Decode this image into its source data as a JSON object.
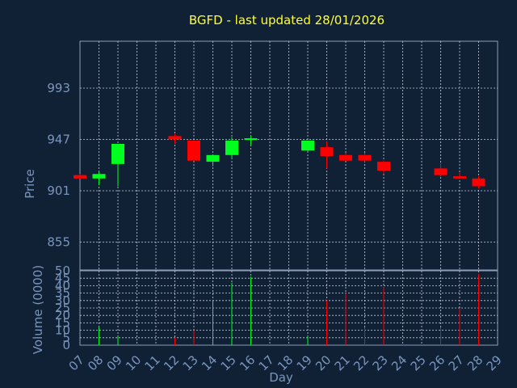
{
  "chart_data": {
    "type": "candlestick",
    "title": "BGFD - last updated 28/01/2026",
    "xlabel": "Day",
    "x_ticks": [
      "07",
      "08",
      "09",
      "10",
      "11",
      "12",
      "13",
      "14",
      "15",
      "16",
      "17",
      "18",
      "19",
      "20",
      "21",
      "22",
      "23",
      "24",
      "25",
      "26",
      "27",
      "28",
      "29"
    ],
    "price_panel": {
      "ylabel": "Price",
      "ylim": [
        830,
        1035
      ],
      "yticks": [
        855,
        901,
        947,
        993
      ],
      "candles": [
        {
          "day": "07",
          "open": 915,
          "high": 916,
          "low": 912,
          "close": 912
        },
        {
          "day": "08",
          "open": 912,
          "high": 918,
          "low": 906,
          "close": 916
        },
        {
          "day": "09",
          "open": 925,
          "high": 943,
          "low": 905,
          "close": 943
        },
        {
          "day": "12",
          "open": 950,
          "high": 952,
          "low": 943,
          "close": 947
        },
        {
          "day": "13",
          "open": 946,
          "high": 946,
          "low": 928,
          "close": 928
        },
        {
          "day": "14",
          "open": 927,
          "high": 933,
          "low": 923,
          "close": 933
        },
        {
          "day": "15",
          "open": 933,
          "high": 949,
          "low": 930,
          "close": 946
        },
        {
          "day": "16",
          "open": 947,
          "high": 951,
          "low": 942,
          "close": 948
        },
        {
          "day": "19",
          "open": 937,
          "high": 946,
          "low": 936,
          "close": 946
        },
        {
          "day": "20",
          "open": 940,
          "high": 945,
          "low": 921,
          "close": 932
        },
        {
          "day": "21",
          "open": 933,
          "high": 935,
          "low": 928,
          "close": 928
        },
        {
          "day": "22",
          "open": 933,
          "high": 935,
          "low": 927,
          "close": 928
        },
        {
          "day": "23",
          "open": 927,
          "high": 928,
          "low": 916,
          "close": 919
        },
        {
          "day": "26",
          "open": 921,
          "high": 926,
          "low": 914,
          "close": 915
        },
        {
          "day": "27",
          "open": 914,
          "high": 917,
          "low": 912,
          "close": 912
        },
        {
          "day": "28",
          "open": 912,
          "high": 914,
          "low": 903,
          "close": 905
        }
      ]
    },
    "volume_panel": {
      "ylabel": "Volume (0000)",
      "ylim": [
        0,
        50
      ],
      "yticks": [
        0,
        5,
        10,
        15,
        20,
        25,
        30,
        35,
        40,
        45,
        50
      ],
      "bars": [
        {
          "day": "08",
          "value": 12
        },
        {
          "day": "09",
          "value": 6
        },
        {
          "day": "12",
          "value": 5
        },
        {
          "day": "13",
          "value": 10
        },
        {
          "day": "14",
          "value": 30
        },
        {
          "day": "15",
          "value": 42
        },
        {
          "day": "16",
          "value": 46
        },
        {
          "day": "19",
          "value": 6
        },
        {
          "day": "20",
          "value": 30
        },
        {
          "day": "21",
          "value": 35
        },
        {
          "day": "22",
          "value": 12
        },
        {
          "day": "23",
          "value": 39
        },
        {
          "day": "26",
          "value": 12
        },
        {
          "day": "27",
          "value": 25
        },
        {
          "day": "28",
          "value": 48
        }
      ]
    },
    "grid": true,
    "colors": {
      "background": "#102035",
      "title": "#ffff33",
      "axis_text": "#7a96be",
      "frame": "#8e9fb8",
      "grid": "#c8d0dc",
      "up": "#00ff1e",
      "down": "#ff0000"
    }
  }
}
